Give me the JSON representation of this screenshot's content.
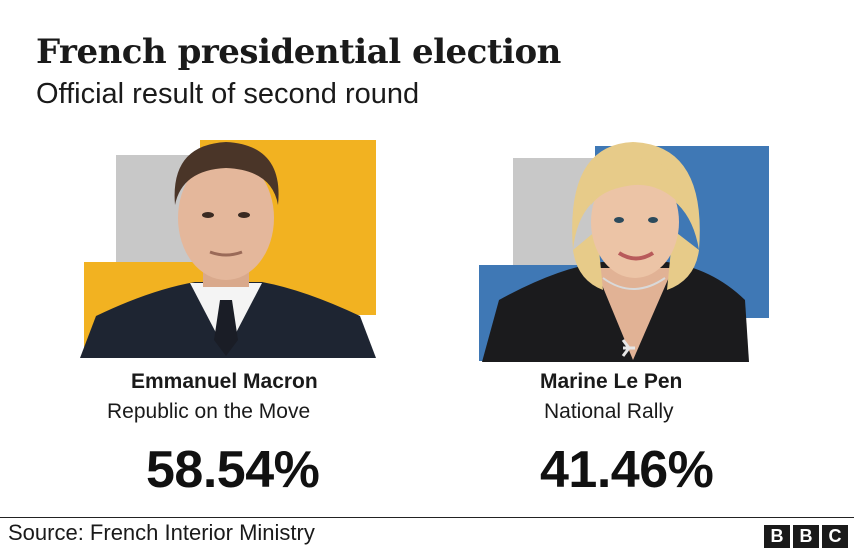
{
  "chart_data": {
    "type": "bar",
    "title": "French presidential election",
    "subtitle": "Official result of second round",
    "categories": [
      "Emmanuel Macron",
      "Marine Le Pen"
    ],
    "parties": [
      "Republic on the Move",
      "National Rally"
    ],
    "values": [
      58.54,
      41.46
    ],
    "value_labels": [
      "58.54%",
      "41.46%"
    ],
    "colors": [
      "#f2b221",
      "#3f78b5"
    ]
  },
  "source": "Source: French Interior Ministry",
  "logo": [
    "B",
    "B",
    "C"
  ]
}
